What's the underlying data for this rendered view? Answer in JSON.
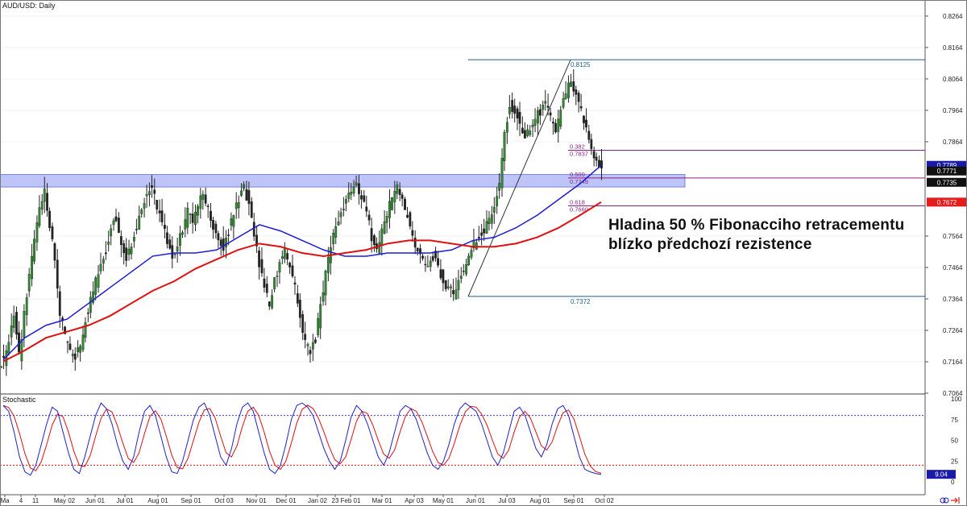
{
  "chart_title": "AUD/USD: Daily",
  "chart_data": {
    "type": "candlestick",
    "title": "AUD/USD: Daily",
    "annotation": [
      "Hladina 50 % Fibonacciho retracementu",
      "blízko předchozí rezistence"
    ],
    "price_axis": {
      "ticks": [
        "0.8264",
        "0.8164",
        "0.8064",
        "0.7964",
        "0.7864",
        "0.7564",
        "0.7464",
        "0.7364",
        "0.7264",
        "0.7164",
        "0.7064"
      ],
      "range": [
        0.7064,
        0.831
      ]
    },
    "price_badges": [
      {
        "label": "0.7789",
        "value": 0.7789,
        "color": "#1a1aa8"
      },
      {
        "label": "0.7771",
        "value": 0.7771,
        "color": "#111111"
      },
      {
        "label": "0.7735",
        "value": 0.7735,
        "color": "#111111"
      },
      {
        "label": "0.7672",
        "value": 0.7672,
        "color": "#e81b1b"
      }
    ],
    "x_labels": [
      "Ma",
      "4",
      "11",
      "May 02",
      "Jun 01",
      "Jul 01",
      "Aug 01",
      "Sep 01",
      "Oct 03",
      "Nov 01",
      "Dec 01",
      "Jan 02",
      "23",
      "Feb 01",
      "Mar 01",
      "Apr 03",
      "May 01",
      "Jun 01",
      "Jul 03",
      "Aug 01",
      "Sep 01",
      "Oct 02"
    ],
    "ohlc_close_path": [
      0.7165,
      0.723,
      0.732,
      0.718,
      0.731,
      0.743,
      0.756,
      0.765,
      0.772,
      0.76,
      0.748,
      0.732,
      0.724,
      0.72,
      0.718,
      0.722,
      0.73,
      0.736,
      0.742,
      0.748,
      0.752,
      0.76,
      0.762,
      0.754,
      0.75,
      0.754,
      0.76,
      0.766,
      0.77,
      0.772,
      0.766,
      0.76,
      0.755,
      0.75,
      0.754,
      0.758,
      0.764,
      0.762,
      0.766,
      0.77,
      0.765,
      0.76,
      0.756,
      0.752,
      0.758,
      0.764,
      0.768,
      0.772,
      0.766,
      0.756,
      0.748,
      0.74,
      0.734,
      0.742,
      0.748,
      0.752,
      0.746,
      0.74,
      0.73,
      0.722,
      0.719,
      0.724,
      0.734,
      0.745,
      0.754,
      0.76,
      0.764,
      0.768,
      0.77,
      0.772,
      0.769,
      0.764,
      0.756,
      0.752,
      0.758,
      0.764,
      0.769,
      0.772,
      0.768,
      0.762,
      0.756,
      0.752,
      0.748,
      0.746,
      0.75,
      0.746,
      0.742,
      0.74,
      0.738,
      0.742,
      0.746,
      0.75,
      0.754,
      0.756,
      0.758,
      0.762,
      0.766,
      0.772,
      0.79,
      0.798,
      0.796,
      0.792,
      0.788,
      0.79,
      0.794,
      0.796,
      0.798,
      0.794,
      0.79,
      0.796,
      0.802,
      0.806,
      0.8,
      0.796,
      0.79,
      0.784,
      0.78,
      0.7771
    ],
    "ma_blue": [
      [
        0,
        0.717
      ],
      [
        4,
        0.724
      ],
      [
        8,
        0.728
      ],
      [
        12,
        0.73
      ],
      [
        16,
        0.735
      ],
      [
        20,
        0.74
      ],
      [
        24,
        0.745
      ],
      [
        28,
        0.75
      ],
      [
        32,
        0.751
      ],
      [
        36,
        0.751
      ],
      [
        40,
        0.752
      ],
      [
        44,
        0.756
      ],
      [
        48,
        0.76
      ],
      [
        52,
        0.758
      ],
      [
        56,
        0.755
      ],
      [
        60,
        0.752
      ],
      [
        64,
        0.75
      ],
      [
        68,
        0.75
      ],
      [
        72,
        0.751
      ],
      [
        76,
        0.751
      ],
      [
        80,
        0.751
      ],
      [
        84,
        0.752
      ],
      [
        88,
        0.755
      ],
      [
        92,
        0.756
      ],
      [
        96,
        0.759
      ],
      [
        100,
        0.763
      ],
      [
        104,
        0.768
      ],
      [
        108,
        0.773
      ],
      [
        112,
        0.7789
      ]
    ],
    "ma_red": [
      [
        0,
        0.7165
      ],
      [
        4,
        0.72
      ],
      [
        8,
        0.724
      ],
      [
        12,
        0.726
      ],
      [
        16,
        0.728
      ],
      [
        20,
        0.731
      ],
      [
        24,
        0.735
      ],
      [
        28,
        0.739
      ],
      [
        32,
        0.742
      ],
      [
        36,
        0.746
      ],
      [
        40,
        0.749
      ],
      [
        44,
        0.752
      ],
      [
        48,
        0.754
      ],
      [
        52,
        0.753
      ],
      [
        56,
        0.751
      ],
      [
        60,
        0.75
      ],
      [
        64,
        0.751
      ],
      [
        68,
        0.752
      ],
      [
        72,
        0.754
      ],
      [
        76,
        0.755
      ],
      [
        80,
        0.755
      ],
      [
        84,
        0.754
      ],
      [
        88,
        0.753
      ],
      [
        92,
        0.753
      ],
      [
        96,
        0.754
      ],
      [
        100,
        0.756
      ],
      [
        104,
        0.759
      ],
      [
        108,
        0.763
      ],
      [
        112,
        0.7672
      ]
    ],
    "fibonacci": {
      "high": {
        "label": "0.8125",
        "value": 0.8125
      },
      "low": {
        "label": "0.7372",
        "value": 0.7372
      },
      "levels": [
        {
          "ratio": "0.382",
          "label": "0.7837",
          "value": 0.7837
        },
        {
          "ratio": "0.500",
          "label": "0.7749",
          "value": 0.7749
        },
        {
          "ratio": "0.618",
          "label": "0.7660",
          "value": 0.766
        }
      ]
    },
    "resistance_zone": [
      0.772,
      0.776
    ],
    "stochastic": {
      "title": "Stochastic",
      "ticks": [
        "100",
        "75",
        "50",
        "25",
        "0"
      ],
      "overbought": 80,
      "oversold": 20,
      "last_value_label": "9.04",
      "k_path": [
        92,
        85,
        60,
        30,
        12,
        8,
        20,
        45,
        70,
        90,
        85,
        60,
        35,
        15,
        10,
        30,
        55,
        80,
        95,
        88,
        70,
        45,
        25,
        15,
        30,
        60,
        85,
        92,
        80,
        55,
        30,
        12,
        10,
        25,
        50,
        75,
        90,
        95,
        80,
        55,
        30,
        20,
        40,
        70,
        90,
        95,
        85,
        60,
        35,
        15,
        10,
        20,
        45,
        75,
        92,
        95,
        90,
        80,
        60,
        40,
        25,
        15,
        25,
        50,
        78,
        92,
        85,
        70,
        50,
        30,
        20,
        35,
        60,
        85,
        92,
        88,
        75,
        55,
        35,
        20,
        15,
        25,
        45,
        70,
        88,
        95,
        90,
        85,
        70,
        50,
        30,
        20,
        35,
        60,
        85,
        90,
        80,
        60,
        40,
        30,
        45,
        70,
        88,
        92,
        80,
        55,
        30,
        15,
        12,
        10,
        9
      ]
    },
    "grid": true
  }
}
